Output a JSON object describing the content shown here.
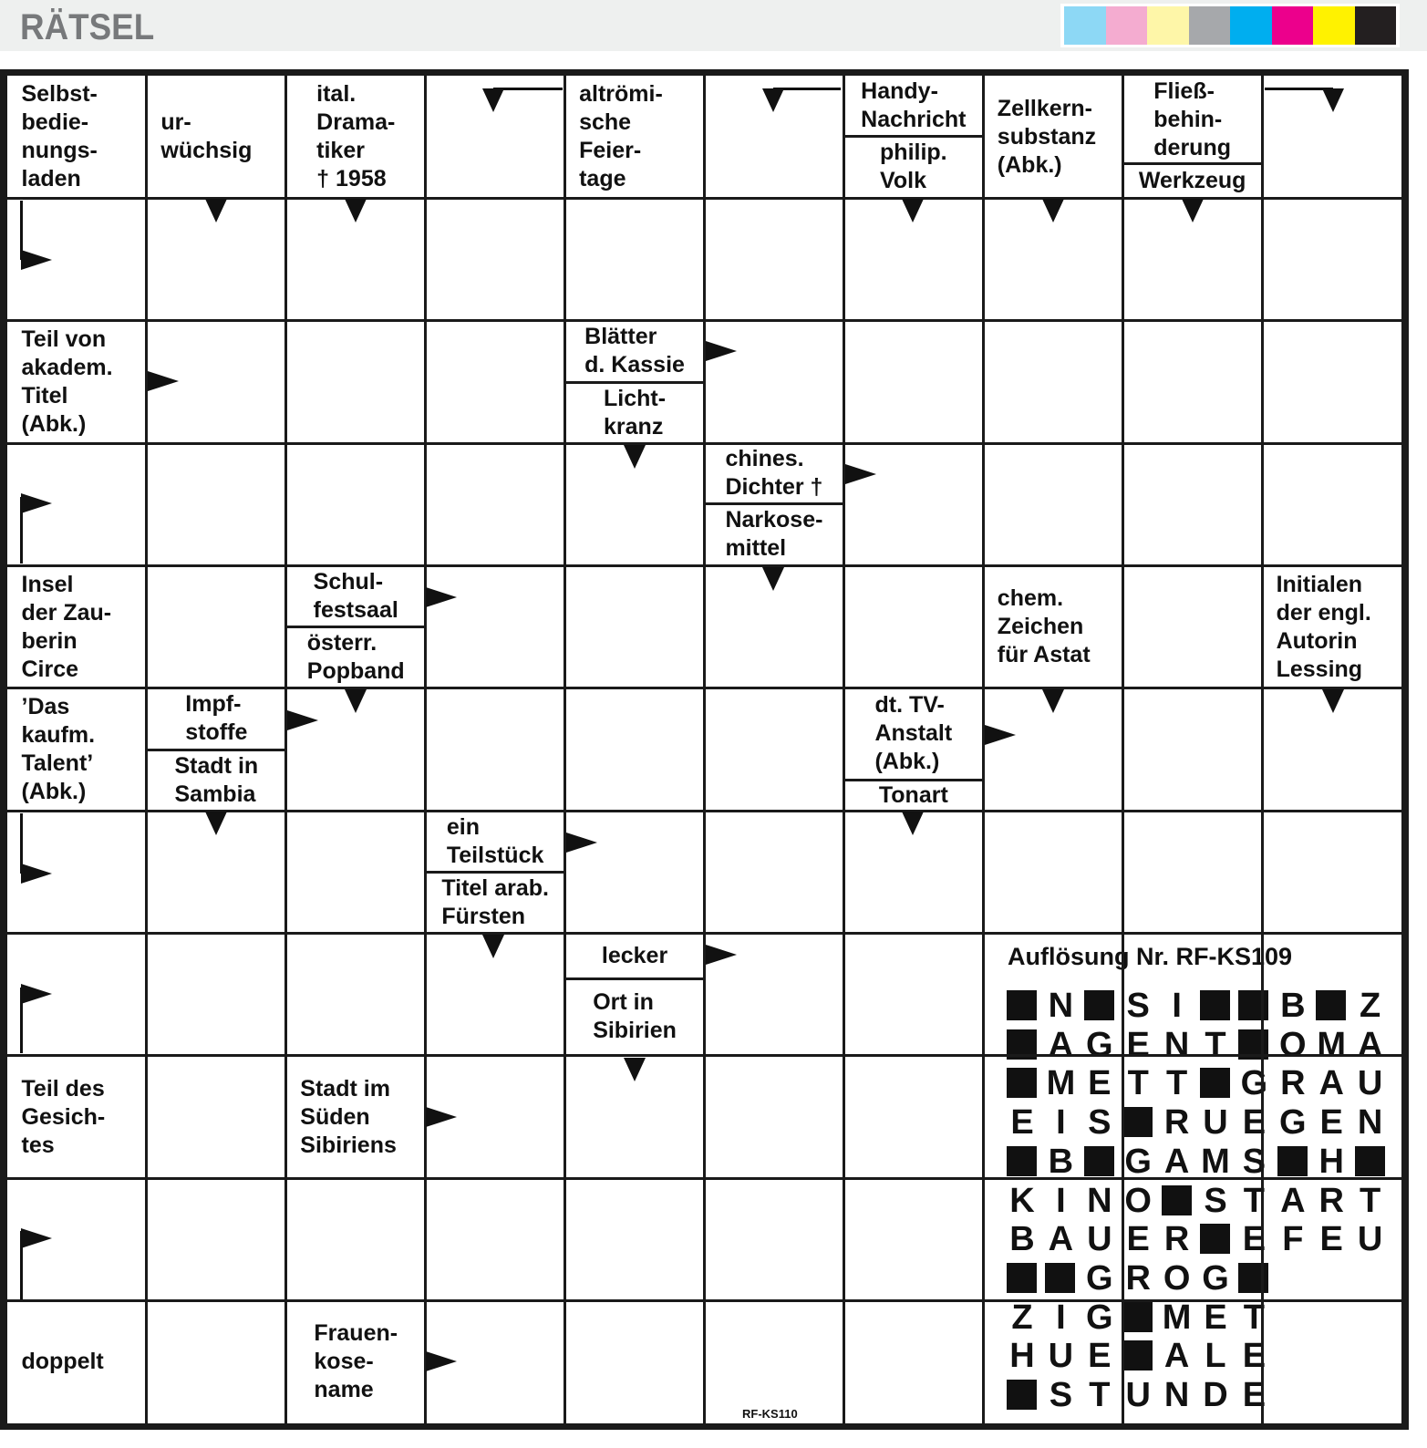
{
  "header": {
    "title": "RÄTSEL",
    "color_swatches": [
      "#8dd8f5",
      "#f4acd0",
      "#fef6a8",
      "#a6a8ab",
      "#00aeef",
      "#ec008c",
      "#fff200",
      "#231f20"
    ]
  },
  "clues": [
    "Selbst-\nbedie-\nnungs-\nladen",
    "ur-\nwüchsig",
    "ital.\nDrama-\ntiker\n† 1958",
    "altrömi-\nsche\nFeier-\ntage",
    "Handy-\nNachricht",
    "philip.\nVolk",
    "Zellkern-\nsubstanz\n(Abk.)",
    "Fließ-\nbehin-\nderung",
    "Werkzeug",
    "Teil von\nakadem.\nTitel\n(Abk.)",
    "Blätter\nd. Kassie",
    "Licht-\nkranz",
    "chines.\nDichter †",
    "Narkose-\nmittel",
    "Insel\nder Zau-\nberin\nCirce",
    "Schul-\nfestsaal",
    "österr.\nPopband",
    "chem.\nZeichen\nfür Astat",
    "Initialen\nder engl.\nAutorin\nLessing",
    "’Das\nkaufm.\nTalent’\n(Abk.)",
    "Impf-\nstoffe",
    "Stadt in\nSambia",
    "dt. TV-\nAnstalt\n(Abk.)",
    "Tonart",
    "ein\nTeilstück",
    "Titel arab.\nFürsten",
    "lecker",
    "Ort in\nSibirien",
    "Teil des\nGesich-\ntes",
    "Stadt im\nSüden\nSibiriens",
    "doppelt",
    "Frauen-\nkose-\nname"
  ],
  "solution": {
    "title": "Auflösung Nr. RF-KS109",
    "rows": [
      "#N#SI##B#Z",
      "#AGENT#OMA",
      "#METT#GRAU",
      "EIS#RUEGEN",
      "#B#GAMS#H#",
      "KINO#START",
      "BAUER#EFEU",
      "##GROG#",
      "ZIG#MET",
      "HUE#ALE",
      "#STUNDE"
    ]
  },
  "footer": {
    "code": "RF-KS110"
  }
}
